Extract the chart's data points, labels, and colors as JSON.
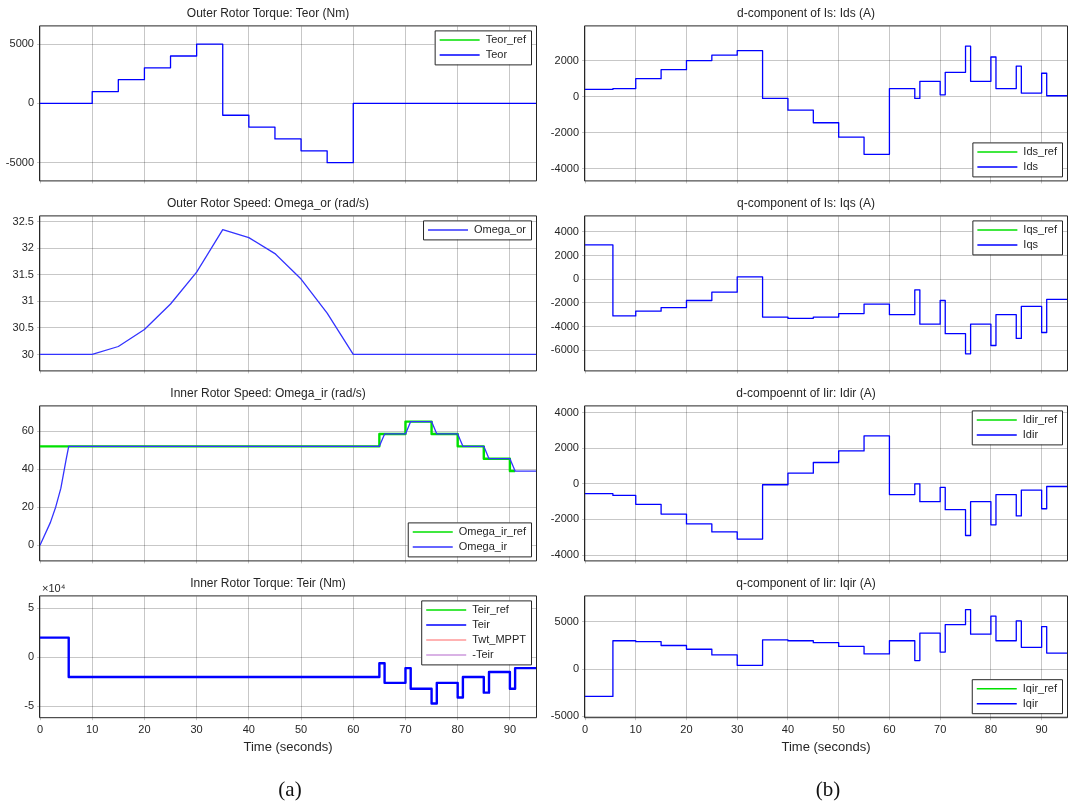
{
  "chart_data": [
    {
      "type": "step",
      "title": "Outer Rotor Torque: Teor (Nm)",
      "xlim": [
        0,
        95
      ],
      "xticks": [
        0,
        10,
        20,
        30,
        40,
        50,
        60,
        70,
        80,
        90
      ],
      "ylim": [
        -6500,
        6500
      ],
      "yticks": [
        -5000,
        0,
        5000
      ],
      "grid": true,
      "legend": "top right",
      "tick_labels": "y",
      "series": [
        {
          "name": "Teor_ref",
          "color": "#00e000"
        },
        {
          "name": "Teor",
          "color": "#0000ff",
          "x": [
            0,
            10,
            15,
            20,
            25,
            30,
            35,
            40,
            45,
            50,
            55,
            60,
            95
          ],
          "values": [
            0,
            1000,
            2000,
            3000,
            4000,
            5000,
            -1000,
            -2000,
            -3000,
            -4000,
            -5000,
            0,
            0
          ]
        }
      ]
    },
    {
      "type": "line",
      "title": "Outer Rotor Speed: Omega_or (rad/s)",
      "xlim": [
        0,
        95
      ],
      "xticks": [
        0,
        10,
        20,
        30,
        40,
        50,
        60,
        70,
        80,
        90
      ],
      "ylim": [
        29.7,
        32.6
      ],
      "yticks": [
        30,
        30.5,
        31,
        31.5,
        32,
        32.5
      ],
      "grid": true,
      "legend": "top right",
      "tick_labels": "y",
      "series": [
        {
          "name": "Omega_or",
          "color": "#3333ff",
          "x": [
            0,
            10,
            15,
            20,
            25,
            30,
            35,
            40,
            45,
            50,
            55,
            60,
            95
          ],
          "values": [
            30,
            30,
            30.15,
            30.47,
            30.95,
            31.55,
            32.35,
            32.2,
            31.9,
            31.42,
            30.78,
            30,
            30
          ]
        }
      ]
    },
    {
      "type": "line",
      "title": "Inner Rotor Speed: Omega_ir (rad/s)",
      "xlim": [
        0,
        95
      ],
      "xticks": [
        0,
        10,
        20,
        30,
        40,
        50,
        60,
        70,
        80,
        90
      ],
      "ylim": [
        -8,
        73
      ],
      "yticks": [
        0,
        20,
        40,
        60
      ],
      "grid": true,
      "legend": "bottom right",
      "tick_labels": "y",
      "series": [
        {
          "name": "Omega_ir_ref",
          "type": "step",
          "color": "#00e000",
          "x": [
            0,
            65,
            70,
            75,
            80,
            85,
            90,
            91
          ],
          "values": [
            52,
            58.5,
            65,
            58.5,
            52,
            45.5,
            39,
            39
          ]
        },
        {
          "name": "Omega_ir",
          "color": "#3333ff",
          "x": [
            0,
            2,
            3,
            4,
            5,
            5.5,
            65,
            66,
            70,
            71,
            75,
            76,
            80,
            81,
            85,
            86,
            90,
            91,
            95
          ],
          "values": [
            0,
            12,
            20,
            30,
            45,
            52,
            52,
            58.5,
            58.5,
            65,
            65,
            58.5,
            58.5,
            52,
            52,
            45.5,
            45.5,
            39,
            39
          ]
        }
      ]
    },
    {
      "type": "step",
      "title": "Inner Rotor Torque: Teir (Nm)",
      "xlabel": "Time (seconds)",
      "xlim": [
        0,
        95
      ],
      "xticks": [
        0,
        10,
        20,
        30,
        40,
        50,
        60,
        70,
        80,
        90
      ],
      "ylim": [
        -6.1,
        6.2
      ],
      "yticks": [
        -5,
        0,
        5
      ],
      "grid": true,
      "legend": "top right",
      "annotations": [
        "×10⁴",
        "(a)"
      ],
      "series": [
        {
          "name": "Teir_ref",
          "color": "#00e000"
        },
        {
          "name": "Teir",
          "color": "#0000ff",
          "x": [
            0,
            5.5,
            65,
            66,
            70,
            71,
            75,
            76,
            80,
            81,
            85,
            86,
            90,
            91,
            95
          ],
          "values": [
            2,
            -2,
            -0.6,
            -2.6,
            -1.1,
            -3.2,
            -4.7,
            -2.6,
            -4.1,
            -2,
            -3.6,
            -1.5,
            -3.2,
            -1.1,
            -1.1
          ]
        },
        {
          "name": "Twt_MPPT",
          "color": "#ff9999"
        },
        {
          "name": "-Teir",
          "color": "#cc99dd"
        }
      ]
    },
    {
      "type": "step",
      "title": "d-component of Is: Ids (A)",
      "xlim": [
        0,
        95
      ],
      "xticks": [
        0,
        10,
        20,
        30,
        40,
        50,
        60,
        70,
        80,
        90
      ],
      "ylim": [
        -4650,
        3900
      ],
      "yticks": [
        -4000,
        -2000,
        0,
        2000
      ],
      "grid": true,
      "legend": "bottom right",
      "tick_labels": "y",
      "series": [
        {
          "name": "Ids_ref",
          "color": "#00e000"
        },
        {
          "name": "Ids",
          "color": "#0000ff",
          "x": [
            0,
            5.5,
            10,
            15,
            20,
            25,
            30,
            35,
            40,
            45,
            50,
            55,
            60,
            65,
            66,
            70,
            71,
            75,
            76,
            80,
            81,
            85,
            86,
            90,
            91,
            95
          ],
          "values": [
            400,
            450,
            1000,
            1500,
            2000,
            2300,
            2550,
            -100,
            -750,
            -1450,
            -2250,
            -3200,
            450,
            -100,
            850,
            100,
            1350,
            2800,
            850,
            2200,
            450,
            1700,
            200,
            1300,
            50,
            50
          ]
        }
      ]
    },
    {
      "type": "step",
      "title": "q-component of Is: Iqs (A)",
      "xlim": [
        0,
        95
      ],
      "xticks": [
        0,
        10,
        20,
        30,
        40,
        50,
        60,
        70,
        80,
        90
      ],
      "ylim": [
        -7700,
        5300
      ],
      "yticks": [
        -6000,
        -4000,
        -2000,
        0,
        2000,
        4000
      ],
      "grid": true,
      "legend": "top right",
      "tick_labels": "y",
      "series": [
        {
          "name": "Iqs_ref",
          "color": "#00e000"
        },
        {
          "name": "Iqs",
          "color": "#0000ff",
          "x": [
            0,
            5.5,
            10,
            15,
            20,
            25,
            30,
            35,
            40,
            45,
            50,
            55,
            60,
            65,
            66,
            70,
            71,
            75,
            76,
            80,
            81,
            85,
            86,
            90,
            91,
            95
          ],
          "values": [
            2900,
            -3100,
            -2700,
            -2400,
            -1800,
            -1100,
            200,
            -3200,
            -3300,
            -3200,
            -2900,
            -2100,
            -3000,
            -900,
            -3800,
            -1800,
            -4600,
            -6300,
            -3800,
            -5600,
            -3000,
            -5000,
            -2300,
            -4500,
            -1700,
            -1700
          ]
        }
      ]
    },
    {
      "type": "step",
      "title": "d-compoennt of Iir: Idir (A)",
      "xlim": [
        0,
        95
      ],
      "xticks": [
        0,
        10,
        20,
        30,
        40,
        50,
        60,
        70,
        80,
        90
      ],
      "ylim": [
        -4300,
        4350
      ],
      "yticks": [
        -4000,
        -2000,
        0,
        2000,
        4000
      ],
      "grid": true,
      "legend": "top right",
      "tick_labels": "y",
      "series": [
        {
          "name": "Idir_ref",
          "color": "#00e000"
        },
        {
          "name": "Idir",
          "color": "#0000ff",
          "x": [
            0,
            5.5,
            10,
            15,
            20,
            25,
            30,
            35,
            40,
            45,
            50,
            55,
            60,
            65,
            66,
            70,
            71,
            75,
            76,
            80,
            81,
            85,
            86,
            90,
            91,
            95
          ],
          "values": [
            -550,
            -650,
            -1150,
            -1700,
            -2250,
            -2700,
            -3100,
            -50,
            600,
            1200,
            1850,
            2700,
            -600,
            0,
            -1000,
            -200,
            -1450,
            -2900,
            -1000,
            -2300,
            -600,
            -1800,
            -350,
            -1400,
            -150,
            -150
          ]
        }
      ]
    },
    {
      "type": "step",
      "title": "q-component of Iir: Iqir (A)",
      "xlabel": "Time (seconds)",
      "xlim": [
        0,
        95
      ],
      "xticks": [
        0,
        10,
        20,
        30,
        40,
        50,
        60,
        70,
        80,
        90
      ],
      "ylim": [
        -5100,
        7700
      ],
      "yticks": [
        -5000,
        0,
        5000
      ],
      "grid": true,
      "legend": "bottom right",
      "annotations": [
        "(b)"
      ],
      "series": [
        {
          "name": "Iqir_ref",
          "color": "#00e000"
        },
        {
          "name": "Iqir",
          "color": "#0000ff",
          "x": [
            0,
            5.5,
            10,
            15,
            20,
            25,
            30,
            35,
            40,
            45,
            50,
            55,
            60,
            65,
            66,
            70,
            71,
            75,
            76,
            80,
            81,
            85,
            86,
            90,
            91,
            95
          ],
          "values": [
            -2900,
            3000,
            2900,
            2500,
            2100,
            1500,
            400,
            3100,
            3000,
            2800,
            2400,
            1600,
            3000,
            900,
            3800,
            1800,
            4700,
            6300,
            3700,
            5600,
            3000,
            5100,
            2300,
            4500,
            1700,
            1700
          ]
        }
      ]
    }
  ]
}
